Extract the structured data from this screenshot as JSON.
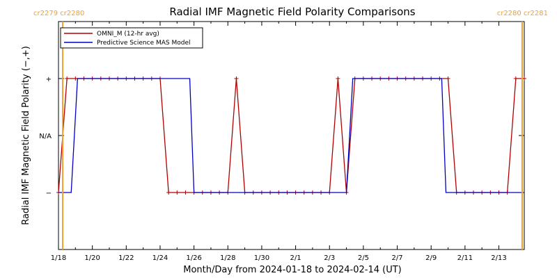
{
  "chart_data": {
    "type": "line",
    "title": "Radial IMF Magnetic Field Polarity Comparisons",
    "xlabel": "Month/Day from 2024-01-18 to 2024-02-14 (UT)",
    "ylabel": "Radial IMF Magnetic Field Polarity (−,+)",
    "x_start": "2024-01-18",
    "xlim": [
      "2024-01-18",
      "2024-02-14T12:00"
    ],
    "x_ticks": [
      "1/18",
      "1/20",
      "1/22",
      "1/24",
      "1/26",
      "1/28",
      "1/30",
      "2/1",
      "2/3",
      "2/5",
      "2/7",
      "2/9",
      "2/11",
      "2/13"
    ],
    "y_categories": [
      "−",
      "N/A",
      "+"
    ],
    "y_tick_labels": [
      "−",
      "N/A",
      "+"
    ],
    "ylim": [
      -2,
      2
    ],
    "legend_position": "top-left",
    "carrington_markers": [
      {
        "x": "2024-01-18T06:00",
        "label": "cr2279 cr2280",
        "position": "left",
        "color": "#f0a030"
      },
      {
        "x": "2024-02-14T09:00",
        "label": "cr2280 cr2281",
        "position": "right",
        "color": "#f0a030"
      }
    ],
    "series": [
      {
        "name": "OMNI_M (12-hr avg)",
        "color": "#b00000",
        "marker": "+",
        "points": [
          [
            "2024-01-18T00:00",
            -1
          ],
          [
            "2024-01-18T12:00",
            1
          ],
          [
            "2024-01-19T00:00",
            1
          ],
          [
            "2024-01-19T12:00",
            1
          ],
          [
            "2024-01-20T00:00",
            1
          ],
          [
            "2024-01-20T12:00",
            1
          ],
          [
            "2024-01-21T00:00",
            1
          ],
          [
            "2024-01-21T12:00",
            1
          ],
          [
            "2024-01-22T00:00",
            1
          ],
          [
            "2024-01-22T12:00",
            1
          ],
          [
            "2024-01-23T00:00",
            1
          ],
          [
            "2024-01-23T12:00",
            1
          ],
          [
            "2024-01-24T00:00",
            1
          ],
          [
            "2024-01-24T12:00",
            -1
          ],
          [
            "2024-01-25T00:00",
            -1
          ],
          [
            "2024-01-25T12:00",
            -1
          ],
          [
            "2024-01-26T00:00",
            -1
          ],
          [
            "2024-01-26T12:00",
            -1
          ],
          [
            "2024-01-27T00:00",
            -1
          ],
          [
            "2024-01-27T12:00",
            -1
          ],
          [
            "2024-01-28T00:00",
            -1
          ],
          [
            "2024-01-28T12:00",
            1
          ],
          [
            "2024-01-29T00:00",
            -1
          ],
          [
            "2024-01-29T12:00",
            -1
          ],
          [
            "2024-01-30T00:00",
            -1
          ],
          [
            "2024-01-30T12:00",
            -1
          ],
          [
            "2024-01-31T00:00",
            -1
          ],
          [
            "2024-01-31T12:00",
            -1
          ],
          [
            "2024-02-01T00:00",
            -1
          ],
          [
            "2024-02-01T12:00",
            -1
          ],
          [
            "2024-02-02T00:00",
            -1
          ],
          [
            "2024-02-02T12:00",
            -1
          ],
          [
            "2024-02-03T00:00",
            -1
          ],
          [
            "2024-02-03T12:00",
            1
          ],
          [
            "2024-02-04T00:00",
            -1
          ],
          [
            "2024-02-04T12:00",
            1
          ],
          [
            "2024-02-05T00:00",
            1
          ],
          [
            "2024-02-05T12:00",
            1
          ],
          [
            "2024-02-06T00:00",
            1
          ],
          [
            "2024-02-06T12:00",
            1
          ],
          [
            "2024-02-07T00:00",
            1
          ],
          [
            "2024-02-07T12:00",
            1
          ],
          [
            "2024-02-08T00:00",
            1
          ],
          [
            "2024-02-08T12:00",
            1
          ],
          [
            "2024-02-09T00:00",
            1
          ],
          [
            "2024-02-09T12:00",
            1
          ],
          [
            "2024-02-10T00:00",
            1
          ],
          [
            "2024-02-10T12:00",
            -1
          ],
          [
            "2024-02-11T00:00",
            -1
          ],
          [
            "2024-02-11T12:00",
            -1
          ],
          [
            "2024-02-12T00:00",
            -1
          ],
          [
            "2024-02-12T12:00",
            -1
          ],
          [
            "2024-02-13T00:00",
            -1
          ],
          [
            "2024-02-13T12:00",
            -1
          ],
          [
            "2024-02-14T00:00",
            1
          ],
          [
            "2024-02-14T12:00",
            1
          ]
        ]
      },
      {
        "name": "Predictive Science MAS Model",
        "color": "#0000c0",
        "marker": "none",
        "points": [
          [
            "2024-01-18T00:00",
            -1
          ],
          [
            "2024-01-18T18:00",
            -1
          ],
          [
            "2024-01-19T03:00",
            1
          ],
          [
            "2024-01-25T18:00",
            1
          ],
          [
            "2024-01-26T00:00",
            -1
          ],
          [
            "2024-02-04T00:00",
            -1
          ],
          [
            "2024-02-04T09:00",
            1
          ],
          [
            "2024-02-09T15:00",
            1
          ],
          [
            "2024-02-09T21:00",
            -1
          ],
          [
            "2024-02-14T09:00",
            -1
          ]
        ]
      }
    ]
  }
}
